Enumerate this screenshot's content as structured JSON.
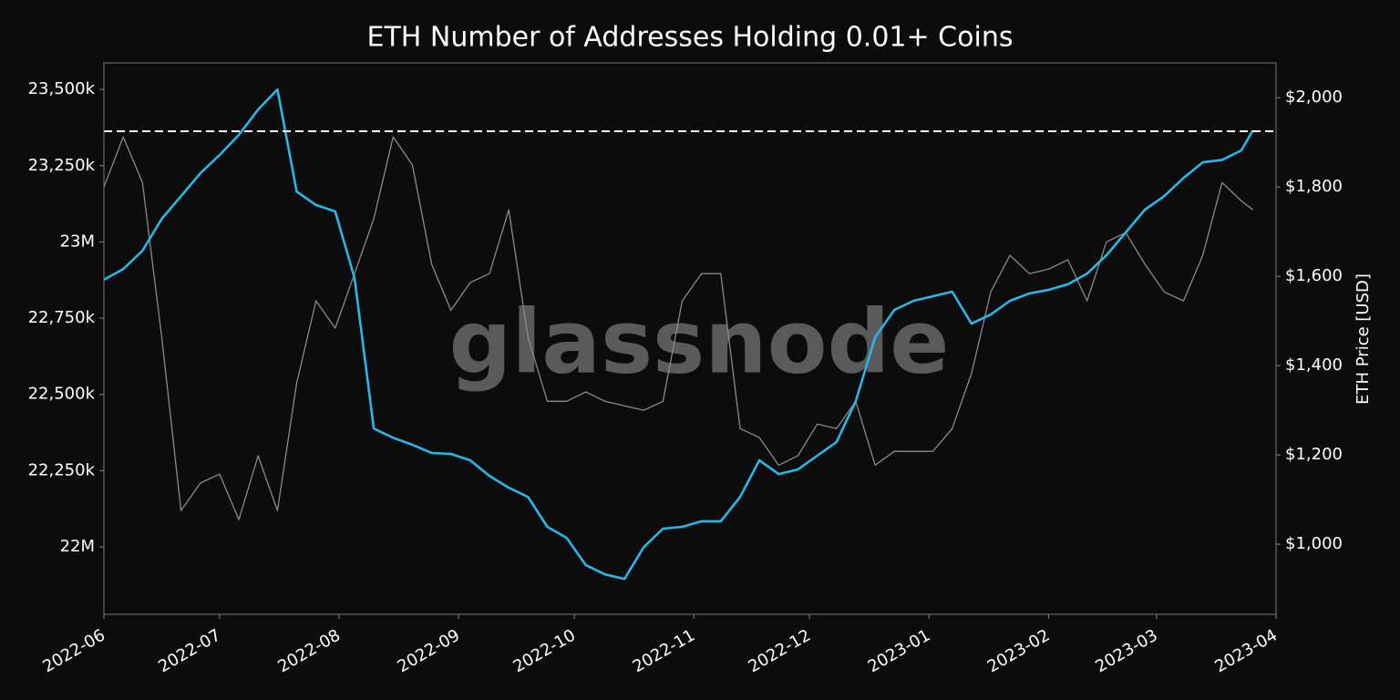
{
  "chart_data": {
    "type": "line",
    "title": "ETH Number of Addresses Holding 0.01+ Coins",
    "watermark": "glassnode",
    "y2label": "ETH Price [USD]",
    "x": [
      "2022-06-01",
      "2022-06-06",
      "2022-06-11",
      "2022-06-16",
      "2022-06-21",
      "2022-06-26",
      "2022-07-01",
      "2022-07-06",
      "2022-07-11",
      "2022-07-16",
      "2022-07-21",
      "2022-07-26",
      "2022-07-31",
      "2022-08-05",
      "2022-08-10",
      "2022-08-15",
      "2022-08-20",
      "2022-08-25",
      "2022-08-30",
      "2022-09-04",
      "2022-09-09",
      "2022-09-14",
      "2022-09-19",
      "2022-09-24",
      "2022-09-29",
      "2022-10-04",
      "2022-10-09",
      "2022-10-14",
      "2022-10-19",
      "2022-10-24",
      "2022-10-29",
      "2022-11-03",
      "2022-11-08",
      "2022-11-13",
      "2022-11-18",
      "2022-11-23",
      "2022-11-28",
      "2022-12-03",
      "2022-12-08",
      "2022-12-13",
      "2022-12-18",
      "2022-12-23",
      "2022-12-28",
      "2023-01-02",
      "2023-01-07",
      "2023-01-12",
      "2023-01-17",
      "2023-01-22",
      "2023-01-27",
      "2023-02-01",
      "2023-02-06",
      "2023-02-11",
      "2023-02-16",
      "2023-02-21",
      "2023-02-26",
      "2023-03-03",
      "2023-03-08",
      "2023-03-13",
      "2023-03-18",
      "2023-03-23",
      "2023-03-26"
    ],
    "series": [
      {
        "color": "#8a8a8a",
        "axis": "y2",
        "values": [
          1800,
          1912,
          1810,
          1463,
          1075,
          1137,
          1157,
          1055,
          1198,
          1075,
          1361,
          1545,
          1484,
          1606,
          1729,
          1912,
          1850,
          1627,
          1524,
          1586,
          1606,
          1749,
          1463,
          1320,
          1320,
          1341,
          1320,
          1310,
          1300,
          1320,
          1545,
          1606,
          1606,
          1259,
          1239,
          1177,
          1198,
          1269,
          1259,
          1320,
          1177,
          1208,
          1208,
          1208,
          1259,
          1382,
          1565,
          1647,
          1606,
          1616,
          1637,
          1545,
          1677,
          1698,
          1627,
          1565,
          1545,
          1647,
          1810,
          1769,
          1749
        ]
      },
      {
        "color": "#29b6e8",
        "values": [
          22876000,
          22911000,
          22971000,
          23076000,
          23150000,
          23225000,
          23285000,
          23351000,
          23434000,
          23500000,
          23165000,
          23121000,
          23100000,
          22881000,
          22388000,
          22358000,
          22335000,
          22308000,
          22305000,
          22284000,
          22233000,
          22194000,
          22164000,
          22066000,
          22030000,
          21940000,
          21910000,
          21895000,
          21999000,
          22060000,
          22066000,
          22084000,
          22084000,
          22164000,
          22284000,
          22239000,
          22254000,
          22299000,
          22344000,
          22478000,
          22687000,
          22777000,
          22807000,
          22822000,
          22837000,
          22732000,
          22762000,
          22807000,
          22831000,
          22843000,
          22861000,
          22896000,
          22956000,
          23031000,
          23106000,
          23150000,
          23210000,
          23261000,
          23269000,
          23300000,
          23366000
        ]
      }
    ],
    "hlines": [
      {
        "value": 23363000,
        "style": "dashed",
        "color": "#ffffff"
      }
    ],
    "xlim": [
      "2022-06-01",
      "2023-04-01"
    ],
    "xticks": [
      {
        "value": "2022-06-01",
        "label": "2022-06"
      },
      {
        "value": "2022-07-01",
        "label": "2022-07"
      },
      {
        "value": "2022-08-01",
        "label": "2022-08"
      },
      {
        "value": "2022-09-01",
        "label": "2022-09"
      },
      {
        "value": "2022-10-01",
        "label": "2022-10"
      },
      {
        "value": "2022-11-01",
        "label": "2022-11"
      },
      {
        "value": "2022-12-01",
        "label": "2022-12"
      },
      {
        "value": "2023-01-01",
        "label": "2023-01"
      },
      {
        "value": "2023-02-01",
        "label": "2023-02"
      },
      {
        "value": "2023-03-01",
        "label": "2023-03"
      },
      {
        "value": "2023-04-01",
        "label": "2023-04"
      }
    ],
    "ylim": [
      21779000,
      23587000
    ],
    "yticks": [
      {
        "value": 22000000,
        "label": "22M"
      },
      {
        "value": 22250000,
        "label": "22,250k"
      },
      {
        "value": 22500000,
        "label": "22,500k"
      },
      {
        "value": 22750000,
        "label": "22,750k"
      },
      {
        "value": 23000000,
        "label": "23M"
      },
      {
        "value": 23250000,
        "label": "23,250k"
      },
      {
        "value": 23500000,
        "label": "23,500k"
      }
    ],
    "y2lim": [
      843,
      2078
    ],
    "y2ticks": [
      {
        "value": 1000,
        "label": "$1,000"
      },
      {
        "value": 1200,
        "label": "$1,200"
      },
      {
        "value": 1400,
        "label": "$1,400"
      },
      {
        "value": 1600,
        "label": "$1,600"
      },
      {
        "value": 1800,
        "label": "$1,800"
      },
      {
        "value": 2000,
        "label": "$2,000"
      }
    ]
  }
}
